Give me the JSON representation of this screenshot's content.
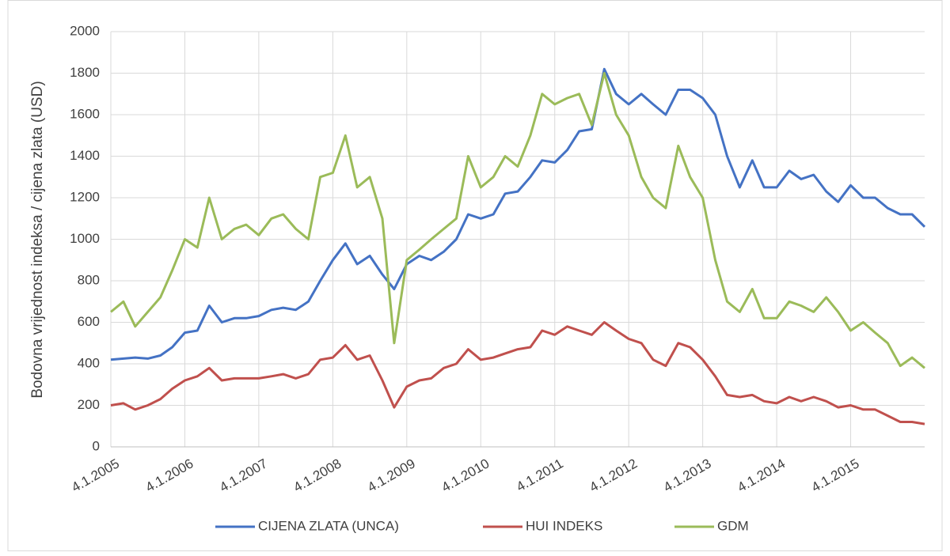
{
  "chart_data": {
    "type": "line",
    "y_label": "Bodovna vrijednost indeksa / cijena zlata  (USD)",
    "x": [
      2005,
      2005.17,
      2005.33,
      2005.5,
      2005.67,
      2005.83,
      2006,
      2006.17,
      2006.33,
      2006.5,
      2006.67,
      2006.83,
      2007,
      2007.17,
      2007.33,
      2007.5,
      2007.67,
      2007.83,
      2008,
      2008.17,
      2008.33,
      2008.5,
      2008.67,
      2008.83,
      2009,
      2009.17,
      2009.33,
      2009.5,
      2009.67,
      2009.83,
      2010,
      2010.17,
      2010.33,
      2010.5,
      2010.67,
      2010.83,
      2011,
      2011.17,
      2011.33,
      2011.5,
      2011.67,
      2011.83,
      2012,
      2012.17,
      2012.33,
      2012.5,
      2012.67,
      2012.83,
      2013,
      2013.17,
      2013.33,
      2013.5,
      2013.67,
      2013.83,
      2014,
      2014.17,
      2014.33,
      2014.5,
      2014.67,
      2014.83,
      2015,
      2015.17,
      2015.33,
      2015.5,
      2015.67,
      2015.83,
      2016
    ],
    "series": [
      {
        "name": "CIJENA  ZLATA (UNCA)",
        "color": "#4472c4",
        "values": [
          420,
          425,
          430,
          425,
          440,
          480,
          550,
          560,
          680,
          600,
          620,
          620,
          630,
          660,
          670,
          660,
          700,
          800,
          900,
          980,
          880,
          920,
          830,
          760,
          880,
          920,
          900,
          940,
          1000,
          1120,
          1100,
          1120,
          1220,
          1230,
          1300,
          1380,
          1370,
          1430,
          1520,
          1530,
          1820,
          1700,
          1650,
          1700,
          1650,
          1600,
          1720,
          1720,
          1680,
          1600,
          1400,
          1250,
          1380,
          1250,
          1250,
          1330,
          1290,
          1310,
          1230,
          1180,
          1260,
          1200,
          1200,
          1150,
          1120,
          1120,
          1060
        ]
      },
      {
        "name": "HUI INDEKS",
        "color": "#c0504d",
        "values": [
          200,
          210,
          180,
          200,
          230,
          280,
          320,
          340,
          380,
          320,
          330,
          330,
          330,
          340,
          350,
          330,
          350,
          420,
          430,
          490,
          420,
          440,
          320,
          190,
          290,
          320,
          330,
          380,
          400,
          470,
          420,
          430,
          450,
          470,
          480,
          560,
          540,
          580,
          560,
          540,
          600,
          560,
          520,
          500,
          420,
          390,
          500,
          480,
          420,
          340,
          250,
          240,
          250,
          220,
          210,
          240,
          220,
          240,
          220,
          190,
          200,
          180,
          180,
          150,
          120,
          120,
          110
        ]
      },
      {
        "name": "GDM",
        "color": "#9bbb59",
        "values": [
          650,
          700,
          580,
          650,
          720,
          850,
          1000,
          960,
          1200,
          1000,
          1050,
          1070,
          1020,
          1100,
          1120,
          1050,
          1000,
          1300,
          1320,
          1500,
          1250,
          1300,
          1100,
          500,
          900,
          950,
          1000,
          1050,
          1100,
          1400,
          1250,
          1300,
          1400,
          1350,
          1500,
          1700,
          1650,
          1680,
          1700,
          1550,
          1800,
          1600,
          1500,
          1300,
          1200,
          1150,
          1450,
          1300,
          1200,
          900,
          700,
          650,
          760,
          620,
          620,
          700,
          680,
          650,
          720,
          650,
          560,
          600,
          550,
          500,
          390,
          430,
          380
        ]
      }
    ],
    "xlim": [
      2005,
      2016
    ],
    "xticks": [
      {
        "value": 2005,
        "label": "4.1.2005"
      },
      {
        "value": 2006,
        "label": "4.1.2006"
      },
      {
        "value": 2007,
        "label": "4.1.2007"
      },
      {
        "value": 2008,
        "label": "4.1.2008"
      },
      {
        "value": 2009,
        "label": "4.1.2009"
      },
      {
        "value": 2010,
        "label": "4.1.2010"
      },
      {
        "value": 2011,
        "label": "4.1.2011"
      },
      {
        "value": 2012,
        "label": "4.1.2012"
      },
      {
        "value": 2013,
        "label": "4.1.2013"
      },
      {
        "value": 2014,
        "label": "4.1.2014"
      },
      {
        "value": 2015,
        "label": "4.1.2015"
      }
    ],
    "ylim": [
      0,
      2000
    ],
    "yticks": [
      0,
      200,
      400,
      600,
      800,
      1000,
      1200,
      1400,
      1600,
      1800,
      2000
    ],
    "grid": true,
    "legend": "bottom"
  }
}
